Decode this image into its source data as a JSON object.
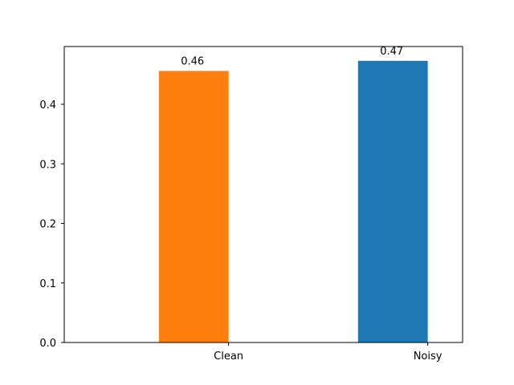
{
  "chart_data": {
    "type": "bar",
    "categories": [
      "Clean",
      "Noisy"
    ],
    "values": [
      0.456,
      0.473
    ],
    "data_labels": [
      "0.46",
      "0.47"
    ],
    "bar_colors": [
      "#ff7f0e",
      "#1f77b4"
    ],
    "title": "",
    "xlabel": "",
    "ylabel": "",
    "ylim": [
      0,
      0.497
    ],
    "yticks": [
      {
        "value": 0.0,
        "label": "0.0"
      },
      {
        "value": 0.1,
        "label": "0.1"
      },
      {
        "value": 0.2,
        "label": "0.2"
      },
      {
        "value": 0.3,
        "label": "0.3"
      },
      {
        "value": 0.4,
        "label": "0.4"
      }
    ],
    "grid": false,
    "legend": "none"
  }
}
